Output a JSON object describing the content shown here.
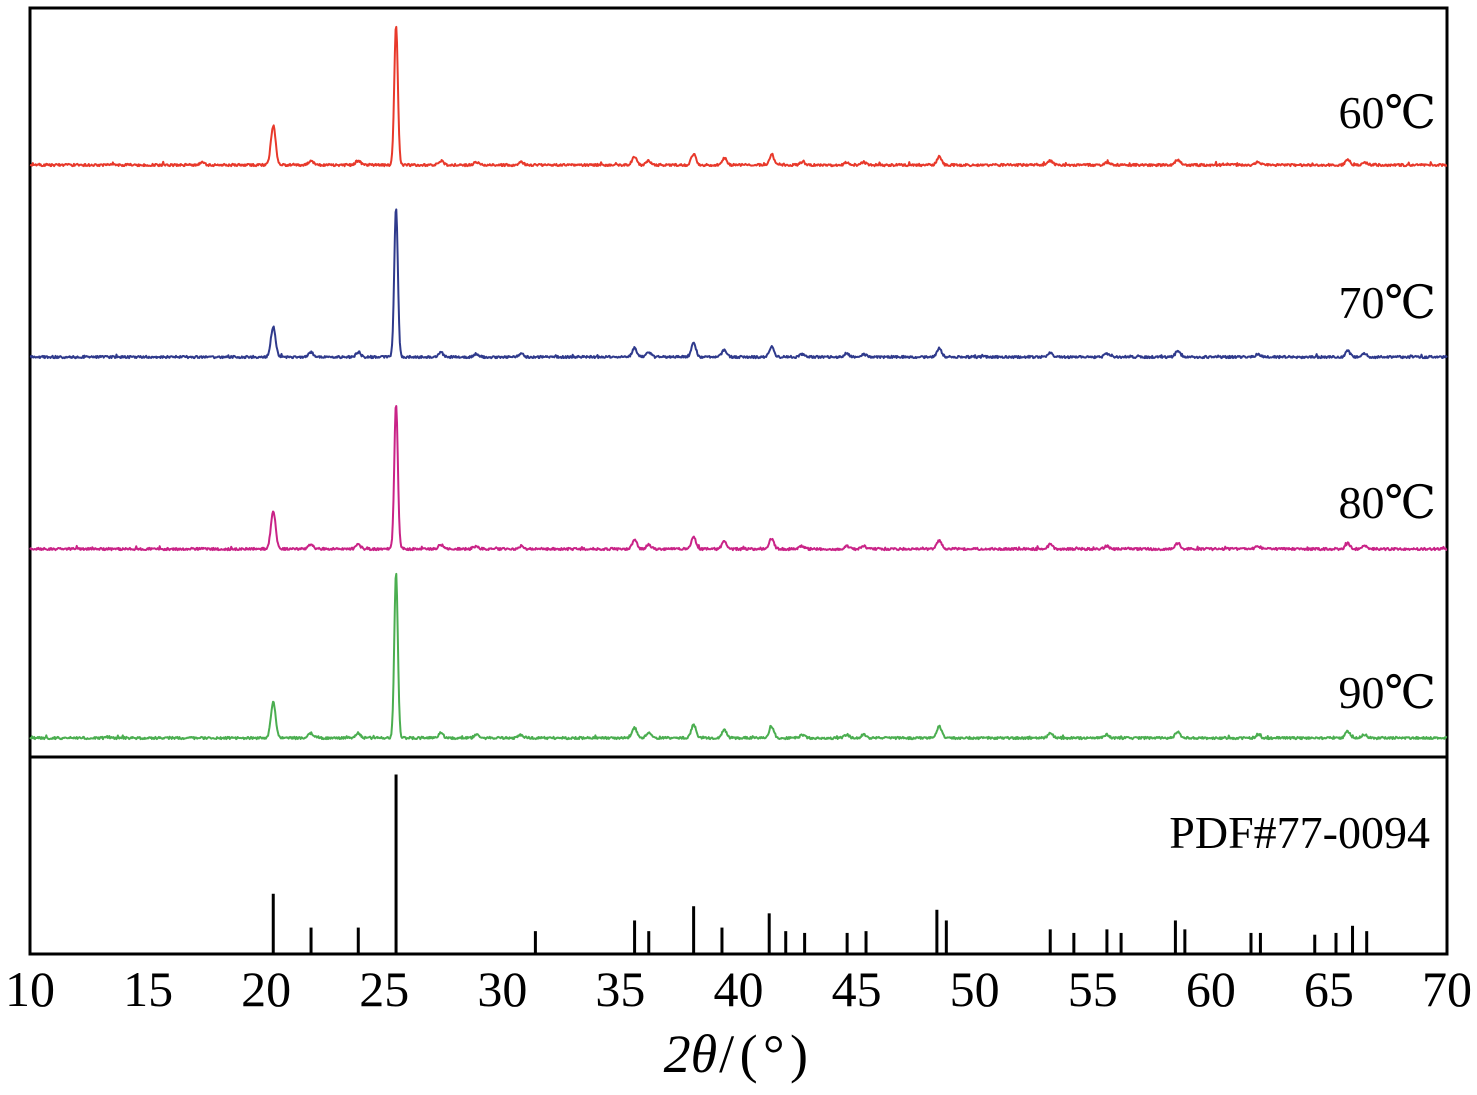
{
  "chart_data": {
    "type": "line",
    "title": "",
    "xlabel": "2θ/(°)",
    "ylabel": "",
    "xlabel_parts": {
      "italic": "2θ",
      "rest": "/(°)"
    },
    "xlim": [
      10,
      70
    ],
    "x_ticks": [
      10,
      15,
      20,
      25,
      30,
      35,
      40,
      45,
      50,
      55,
      60,
      65,
      70
    ],
    "grid": false,
    "legend_position": "right-inline",
    "series": [
      {
        "name": "60℃",
        "color": "#e8392b",
        "peaks": [
          [
            17.3,
            0.02
          ],
          [
            20.3,
            0.28
          ],
          [
            21.9,
            0.03
          ],
          [
            23.9,
            0.03
          ],
          [
            25.5,
            1.0
          ],
          [
            27.4,
            0.03
          ],
          [
            28.9,
            0.02
          ],
          [
            30.8,
            0.02
          ],
          [
            35.6,
            0.06
          ],
          [
            36.2,
            0.03
          ],
          [
            38.1,
            0.08
          ],
          [
            39.4,
            0.05
          ],
          [
            41.4,
            0.07
          ],
          [
            42.7,
            0.02
          ],
          [
            44.6,
            0.02
          ],
          [
            45.3,
            0.02
          ],
          [
            48.5,
            0.06
          ],
          [
            53.2,
            0.03
          ],
          [
            55.6,
            0.02
          ],
          [
            58.6,
            0.04
          ],
          [
            62.0,
            0.02
          ],
          [
            65.8,
            0.04
          ],
          [
            66.5,
            0.02
          ]
        ]
      },
      {
        "name": "70℃",
        "color": "#2f3a8c",
        "peaks": [
          [
            20.3,
            0.2
          ],
          [
            21.9,
            0.03
          ],
          [
            23.9,
            0.03
          ],
          [
            25.5,
            1.0
          ],
          [
            27.4,
            0.03
          ],
          [
            28.9,
            0.02
          ],
          [
            30.8,
            0.02
          ],
          [
            35.6,
            0.06
          ],
          [
            36.2,
            0.03
          ],
          [
            38.1,
            0.09
          ],
          [
            39.4,
            0.05
          ],
          [
            41.4,
            0.07
          ],
          [
            42.7,
            0.02
          ],
          [
            44.6,
            0.02
          ],
          [
            45.3,
            0.02
          ],
          [
            48.5,
            0.06
          ],
          [
            53.2,
            0.03
          ],
          [
            55.6,
            0.02
          ],
          [
            58.6,
            0.04
          ],
          [
            62.0,
            0.02
          ],
          [
            65.8,
            0.04
          ],
          [
            66.5,
            0.02
          ]
        ]
      },
      {
        "name": "80℃",
        "color": "#c92387",
        "peaks": [
          [
            20.3,
            0.26
          ],
          [
            21.9,
            0.03
          ],
          [
            23.9,
            0.03
          ],
          [
            25.5,
            1.0
          ],
          [
            27.4,
            0.03
          ],
          [
            28.9,
            0.02
          ],
          [
            30.8,
            0.02
          ],
          [
            35.6,
            0.06
          ],
          [
            36.2,
            0.03
          ],
          [
            38.1,
            0.08
          ],
          [
            39.4,
            0.05
          ],
          [
            41.4,
            0.07
          ],
          [
            42.7,
            0.02
          ],
          [
            44.6,
            0.02
          ],
          [
            45.3,
            0.02
          ],
          [
            48.5,
            0.06
          ],
          [
            53.2,
            0.03
          ],
          [
            55.6,
            0.02
          ],
          [
            58.6,
            0.04
          ],
          [
            62.0,
            0.02
          ],
          [
            65.8,
            0.04
          ],
          [
            66.5,
            0.02
          ]
        ]
      },
      {
        "name": "90℃",
        "color": "#4bae50",
        "peaks": [
          [
            20.3,
            0.22
          ],
          [
            21.9,
            0.03
          ],
          [
            23.9,
            0.03
          ],
          [
            25.5,
            1.0
          ],
          [
            27.4,
            0.03
          ],
          [
            28.9,
            0.02
          ],
          [
            30.8,
            0.02
          ],
          [
            35.6,
            0.06
          ],
          [
            36.2,
            0.03
          ],
          [
            38.1,
            0.08
          ],
          [
            39.4,
            0.05
          ],
          [
            41.4,
            0.07
          ],
          [
            42.7,
            0.02
          ],
          [
            44.6,
            0.02
          ],
          [
            45.3,
            0.02
          ],
          [
            48.5,
            0.07
          ],
          [
            53.2,
            0.03
          ],
          [
            55.6,
            0.02
          ],
          [
            58.6,
            0.04
          ],
          [
            62.0,
            0.02
          ],
          [
            65.8,
            0.04
          ],
          [
            66.5,
            0.02
          ]
        ]
      }
    ],
    "reference": {
      "label": "PDF#77-0094",
      "sticks": [
        [
          20.3,
          0.33
        ],
        [
          21.9,
          0.14
        ],
        [
          23.9,
          0.14
        ],
        [
          25.5,
          1.0
        ],
        [
          31.4,
          0.12
        ],
        [
          35.6,
          0.18
        ],
        [
          36.2,
          0.12
        ],
        [
          38.1,
          0.26
        ],
        [
          39.3,
          0.14
        ],
        [
          41.3,
          0.22
        ],
        [
          42.0,
          0.12
        ],
        [
          42.8,
          0.11
        ],
        [
          44.6,
          0.11
        ],
        [
          45.4,
          0.12
        ],
        [
          48.4,
          0.24
        ],
        [
          48.8,
          0.18
        ],
        [
          53.2,
          0.13
        ],
        [
          54.2,
          0.11
        ],
        [
          55.6,
          0.13
        ],
        [
          56.2,
          0.11
        ],
        [
          58.5,
          0.18
        ],
        [
          58.9,
          0.13
        ],
        [
          61.7,
          0.11
        ],
        [
          62.1,
          0.11
        ],
        [
          64.4,
          0.1
        ],
        [
          65.3,
          0.11
        ],
        [
          66.0,
          0.15
        ],
        [
          66.6,
          0.12
        ]
      ]
    }
  }
}
